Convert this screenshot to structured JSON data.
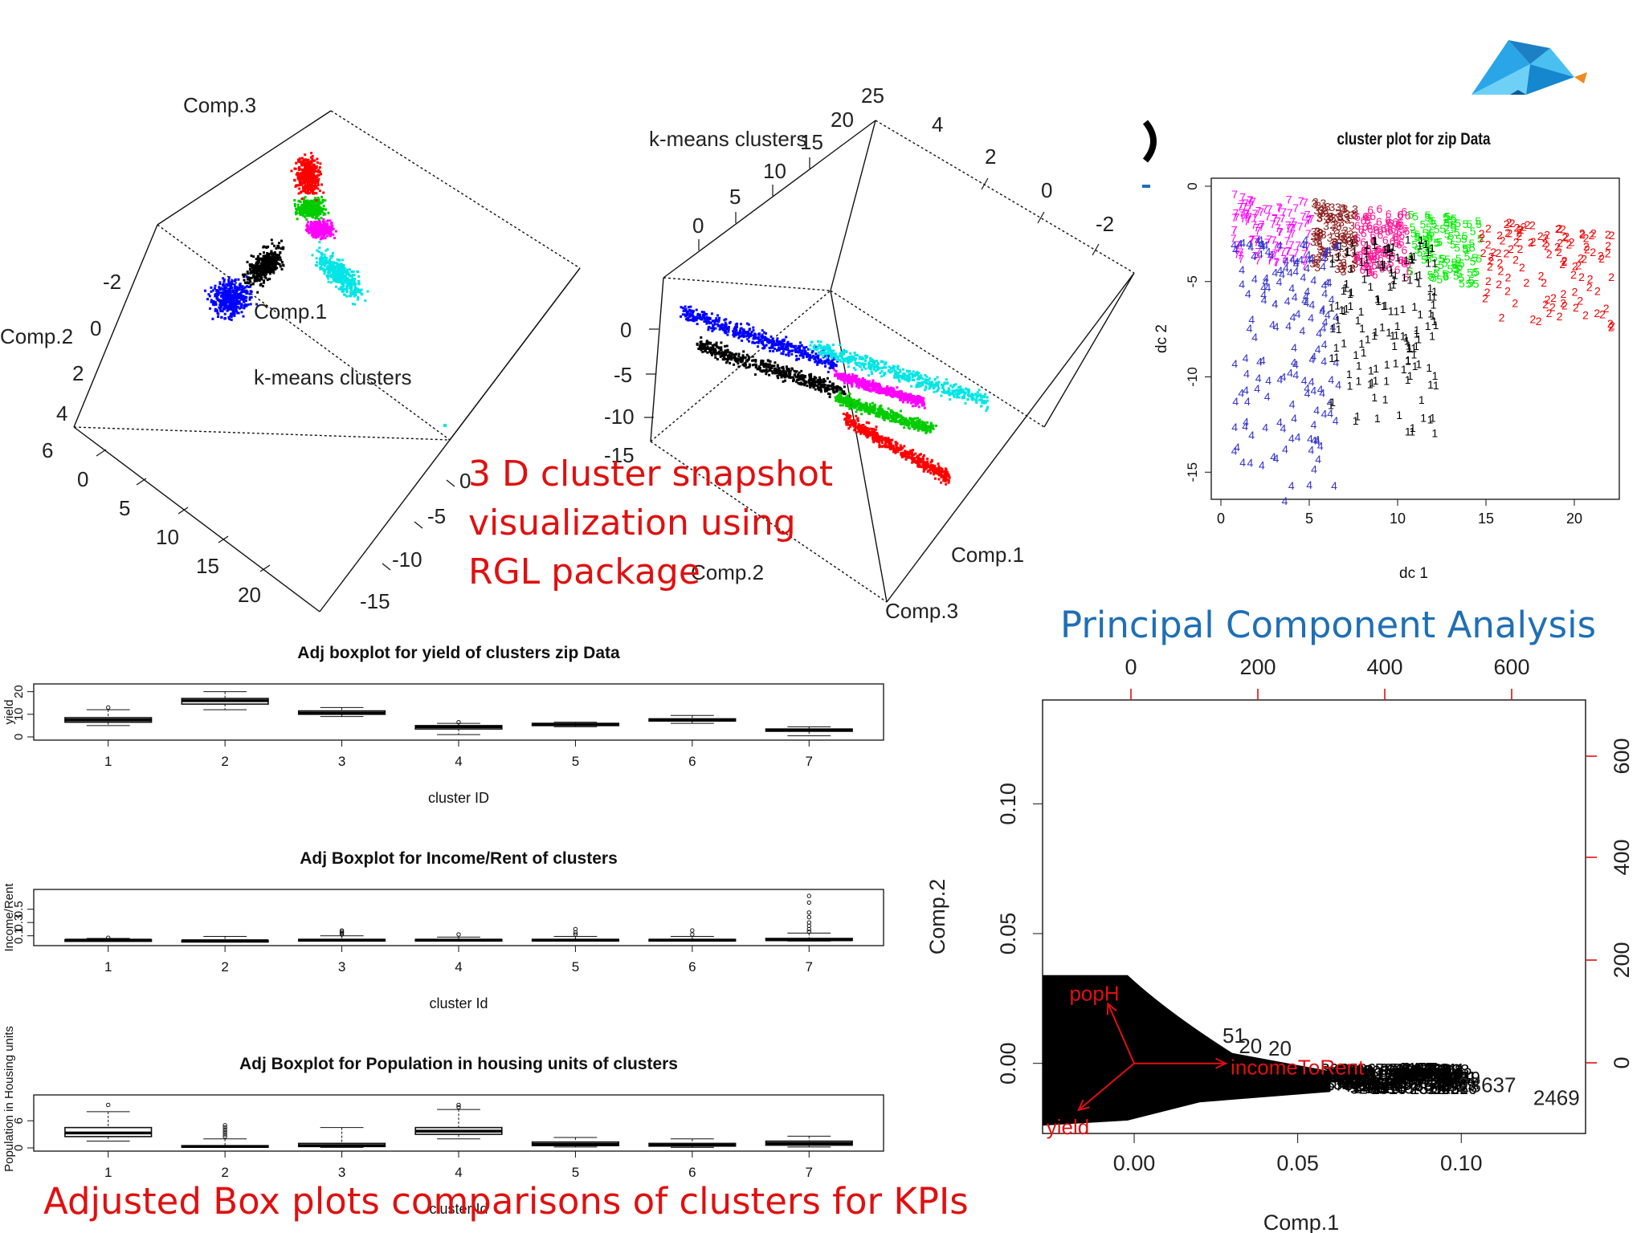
{
  "captions": {
    "three_d": "3 D cluster snapshot\nvisualization using\nRGL package",
    "pca": "Principal Component Analysis",
    "boxplots": "Adjusted Box plots comparisons of clusters for KPIs"
  },
  "colors": {
    "caption_red": "#e01010",
    "caption_blue": "#1f6fb5",
    "cluster_palette": [
      "#000000",
      "#ff0000",
      "#00cc00",
      "#0000ff",
      "#00e5e5",
      "#ff00ff",
      "#8b1a1a"
    ],
    "logo": "#2aa6e8"
  },
  "logo": {
    "icon": "low-poly-bird-logo-icon"
  },
  "chart_data": [
    {
      "id": "rgl3d-a",
      "type": "scatter",
      "title": "",
      "axis_labels": [
        "Comp.3",
        "Comp.2",
        "Comp.1",
        "k-means clusters"
      ],
      "tick_labels_left": [
        "-2",
        "0",
        "2",
        "4",
        "6"
      ],
      "tick_labels_bottom": [
        "0",
        "5",
        "10",
        "15",
        "20"
      ],
      "tick_labels_right": [
        "0",
        "-5",
        "-10",
        "-15"
      ],
      "series": [
        {
          "color": "#0000ff",
          "points": 420
        },
        {
          "color": "#000000",
          "points": 420
        },
        {
          "color": "#00e5e5",
          "points": 420
        },
        {
          "color": "#ff00ff",
          "points": 320
        },
        {
          "color": "#00cc00",
          "points": 380
        },
        {
          "color": "#ff0000",
          "points": 420
        }
      ]
    },
    {
      "id": "rgl3d-b",
      "type": "scatter",
      "title": "",
      "axis_labels": [
        "k-means clusters",
        "Comp.2",
        "Comp.1",
        "Comp.3"
      ],
      "tick_labels_top": [
        "25",
        "20",
        "15",
        "10",
        "5",
        "0"
      ],
      "tick_labels_right": [
        "4",
        "2",
        "0",
        "-2"
      ],
      "tick_labels_left": [
        "0",
        "-5",
        "-10",
        "-15"
      ]
    },
    {
      "id": "cluster-plot",
      "type": "scatter",
      "title": "cluster plot for zip Data",
      "xlabel": "dc 1",
      "ylabel": "dc 2",
      "xlim": [
        0,
        22
      ],
      "ylim": [
        -16,
        0
      ],
      "xticks": [
        "0",
        "5",
        "10",
        "15",
        "20"
      ],
      "yticks": [
        "0",
        "-5",
        "-10",
        "-15"
      ],
      "regions": [
        {
          "label": "7",
          "color": "#ff00ff",
          "x": [
            0.5,
            5.0
          ]
        },
        {
          "label": "3",
          "color": "#8b1a1a",
          "x": [
            5.0,
            7.5
          ]
        },
        {
          "label": "6",
          "color": "#ff1493",
          "x": [
            7.5,
            10.5
          ]
        },
        {
          "label": "5",
          "color": "#00ee00",
          "x": [
            10.5,
            14.5
          ]
        },
        {
          "label": "2",
          "color": "#ee0000",
          "x": [
            14.5,
            22.0
          ]
        },
        {
          "label": "4",
          "color": "#3333cc",
          "x": [
            0.5,
            6.5
          ]
        },
        {
          "label": "1",
          "color": "#000000",
          "x": [
            6.0,
            12.0
          ]
        }
      ]
    },
    {
      "id": "box-yield",
      "type": "box",
      "title": "Adj boxplot for yield of clusters zip Data",
      "xlabel": "cluster ID",
      "ylabel": "yield",
      "categories": [
        "1",
        "2",
        "3",
        "4",
        "5",
        "6",
        "7"
      ],
      "ylim": [
        0,
        22
      ],
      "yticks": [
        "0",
        "10",
        "20"
      ],
      "values": [
        {
          "min": 5,
          "q1": 6.5,
          "med": 7.5,
          "q3": 8.5,
          "max": 12,
          "out": [
            13
          ]
        },
        {
          "min": 12,
          "q1": 14.5,
          "med": 16,
          "q3": 17,
          "max": 20,
          "out": []
        },
        {
          "min": 9,
          "q1": 10,
          "med": 10.5,
          "q3": 11.5,
          "max": 13,
          "out": []
        },
        {
          "min": 1,
          "q1": 3.5,
          "med": 4.5,
          "q3": 5,
          "max": 6,
          "out": [
            6.5
          ]
        },
        {
          "min": 4.5,
          "q1": 5,
          "med": 5.5,
          "q3": 6,
          "max": 6.5,
          "out": []
        },
        {
          "min": 6,
          "q1": 7,
          "med": 7.5,
          "q3": 8,
          "max": 9.5,
          "out": []
        },
        {
          "min": 0.5,
          "q1": 2.5,
          "med": 3,
          "q3": 3.5,
          "max": 4.5,
          "out": []
        }
      ]
    },
    {
      "id": "box-income",
      "type": "box",
      "title": "Adj Boxplot for Income/Rent of clusters",
      "xlabel": "cluster Id",
      "ylabel": "Income/Rent",
      "categories": [
        "1",
        "2",
        "3",
        "4",
        "5",
        "6",
        "7"
      ],
      "ylim": [
        0,
        0.75
      ],
      "yticks": [
        "0.1",
        "0.3",
        "0.5"
      ],
      "values": [
        {
          "min": 0.02,
          "q1": 0.03,
          "med": 0.035,
          "q3": 0.04,
          "max": 0.06,
          "out": [
            0.07
          ]
        },
        {
          "min": 0.01,
          "q1": 0.02,
          "med": 0.025,
          "q3": 0.03,
          "max": 0.09,
          "out": []
        },
        {
          "min": 0.02,
          "q1": 0.03,
          "med": 0.035,
          "q3": 0.045,
          "max": 0.1,
          "out": [
            0.12,
            0.14,
            0.16,
            0.18
          ]
        },
        {
          "min": 0.02,
          "q1": 0.03,
          "med": 0.035,
          "q3": 0.045,
          "max": 0.08,
          "out": [
            0.12
          ]
        },
        {
          "min": 0.02,
          "q1": 0.03,
          "med": 0.035,
          "q3": 0.045,
          "max": 0.09,
          "out": [
            0.12,
            0.15,
            0.2
          ]
        },
        {
          "min": 0.02,
          "q1": 0.03,
          "med": 0.035,
          "q3": 0.045,
          "max": 0.09,
          "out": [
            0.12,
            0.18
          ]
        },
        {
          "min": 0.02,
          "q1": 0.03,
          "med": 0.04,
          "q3": 0.06,
          "max": 0.14,
          "out": [
            0.16,
            0.2,
            0.25,
            0.3,
            0.38,
            0.45,
            0.6,
            0.7
          ]
        }
      ]
    },
    {
      "id": "box-population",
      "type": "box",
      "title": "Adj Boxplot for Population in housing units of clusters",
      "xlabel": "cluster Id",
      "ylabel": "Population in Housing units",
      "categories": [
        "1",
        "2",
        "3",
        "4",
        "5",
        "6",
        "7"
      ],
      "ylim": [
        0,
        11
      ],
      "yticks": [
        "0",
        "6"
      ],
      "values": [
        {
          "min": 1.5,
          "q1": 2.5,
          "med": 3.3,
          "q3": 4.5,
          "max": 8,
          "out": [
            9.5
          ]
        },
        {
          "min": 0.1,
          "q1": 0.2,
          "med": 0.3,
          "q3": 0.5,
          "max": 2,
          "out": [
            2.5,
            3,
            3.5,
            4,
            4.5,
            5
          ]
        },
        {
          "min": 0.1,
          "q1": 0.3,
          "med": 0.5,
          "q3": 1,
          "max": 4.5,
          "out": []
        },
        {
          "min": 2,
          "q1": 3,
          "med": 3.7,
          "q3": 4.5,
          "max": 8.5,
          "out": [
            9,
            9.5
          ]
        },
        {
          "min": 0.2,
          "q1": 0.5,
          "med": 0.8,
          "q3": 1.3,
          "max": 2.3,
          "out": []
        },
        {
          "min": 0.1,
          "q1": 0.4,
          "med": 0.6,
          "q3": 1,
          "max": 2,
          "out": []
        },
        {
          "min": 0.2,
          "q1": 0.6,
          "med": 1,
          "q3": 1.5,
          "max": 2.6,
          "out": []
        }
      ]
    },
    {
      "id": "pca-biplot",
      "type": "scatter",
      "title": "",
      "xlabel": "Comp.1",
      "ylabel": "Comp.2",
      "xlim": [
        -0.028,
        0.138
      ],
      "ylim": [
        -0.027,
        0.14
      ],
      "xticks": [
        0.0,
        0.05,
        0.1
      ],
      "xtick_labels": [
        "0.00",
        "0.05",
        "0.10"
      ],
      "yticks": [
        0.0,
        0.05,
        0.1
      ],
      "ytick_labels": [
        "0.00",
        "0.05",
        "0.10"
      ],
      "top_ticks": [
        "0",
        "200",
        "400",
        "600"
      ],
      "right_ticks": [
        "0",
        "200",
        "400",
        "600"
      ],
      "arrows": [
        {
          "label": "popH",
          "x": -0.008,
          "y": 0.023
        },
        {
          "label": "incomeToRent",
          "x": 0.028,
          "y": 0.0
        },
        {
          "label": "yield",
          "x": -0.017,
          "y": -0.018
        }
      ],
      "point_labels": [
        {
          "text": "2469",
          "x": 0.122,
          "y": -0.016
        },
        {
          "text": "23637",
          "x": 0.099,
          "y": -0.011
        },
        {
          "text": "20",
          "x": 0.041,
          "y": 0.003
        },
        {
          "text": "51",
          "x": 0.027,
          "y": 0.008
        },
        {
          "text": "20",
          "x": 0.032,
          "y": 0.004
        }
      ]
    }
  ]
}
